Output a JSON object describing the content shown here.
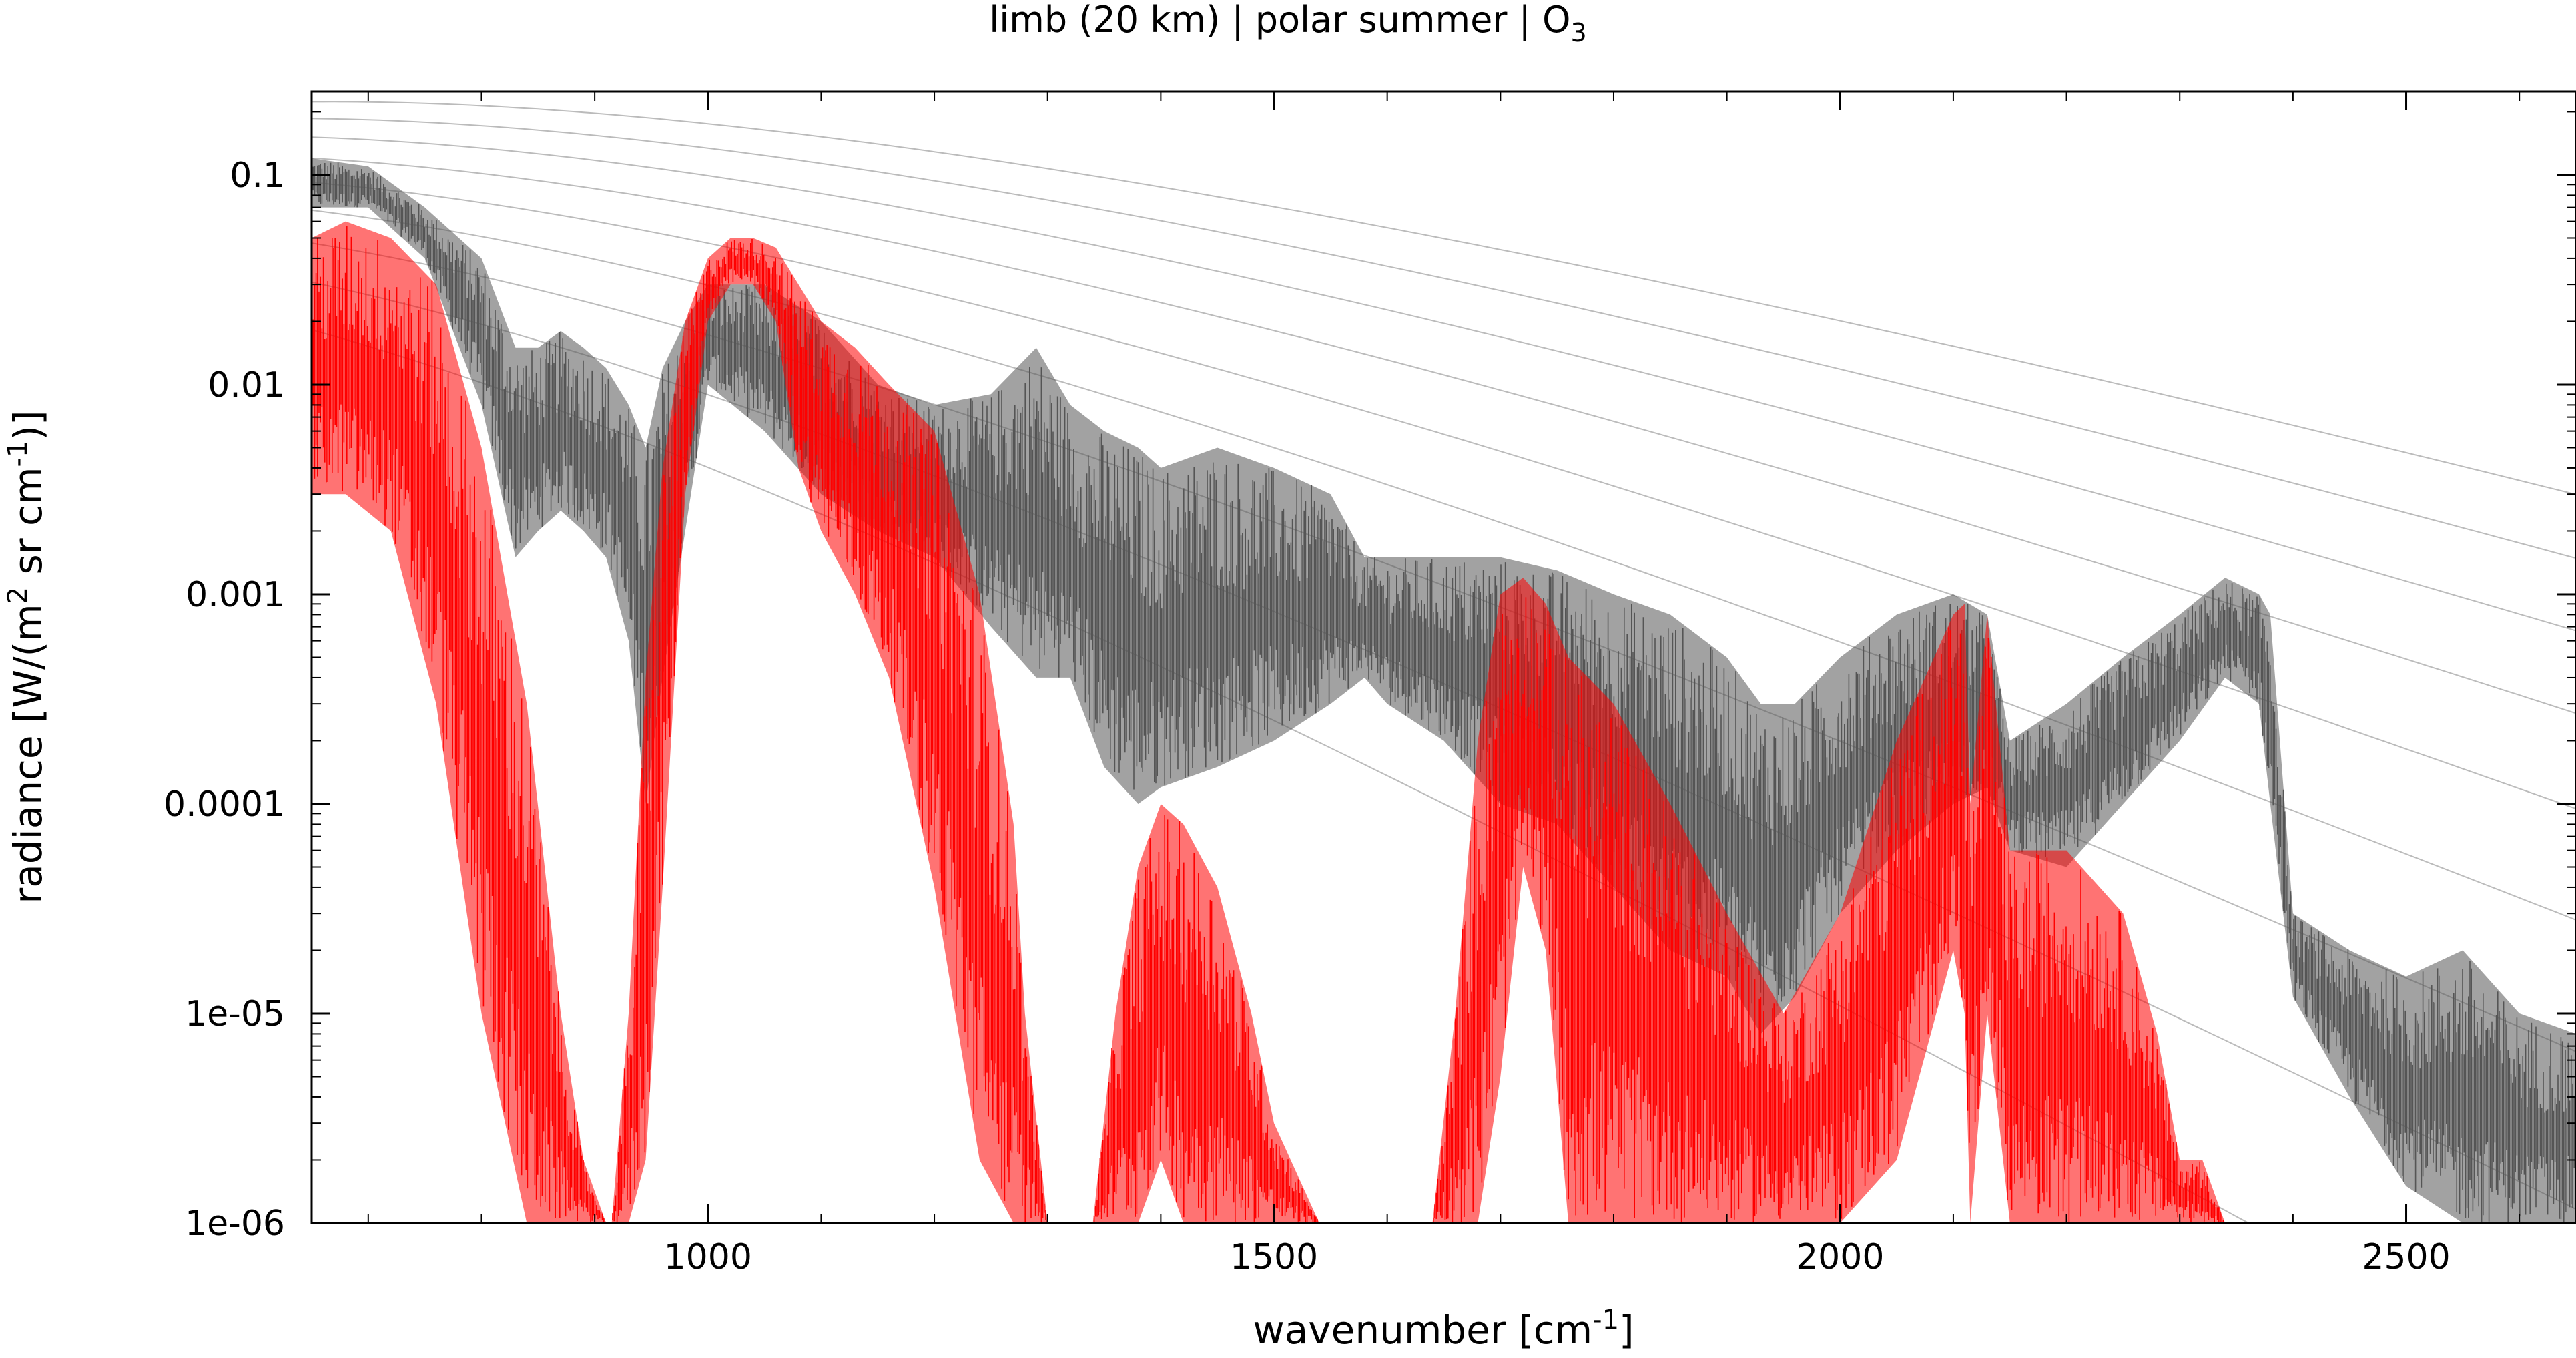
{
  "chart_data": {
    "type": "line",
    "title": {
      "pre": "limb (20 km) | polar summer | O",
      "sub": "3"
    },
    "xlabel": {
      "pre": "wavenumber [cm",
      "sup": "-1",
      "post": "]"
    },
    "ylabel": {
      "pre": "radiance [W/(m",
      "sup1": "2",
      "mid": " sr cm",
      "sup2": "-1",
      "post": ")]"
    },
    "xlim": [
      650,
      2650
    ],
    "ylim": [
      1e-06,
      0.25
    ],
    "yscale": "log",
    "grid": false,
    "legend": "none",
    "x_ticks": [
      {
        "value": 1000,
        "label": "1000"
      },
      {
        "value": 1500,
        "label": "1500"
      },
      {
        "value": 2000,
        "label": "2000"
      },
      {
        "value": 2500,
        "label": "2500"
      }
    ],
    "y_ticks": [
      {
        "value": 0.1,
        "label": "0.1"
      },
      {
        "value": 0.01,
        "label": "0.01"
      },
      {
        "value": 0.001,
        "label": "0.001"
      },
      {
        "value": 0.0001,
        "label": "0.0001"
      },
      {
        "value": 1e-05,
        "label": "1e-05"
      },
      {
        "value": 1e-06,
        "label": "1e-06"
      }
    ],
    "reference_curves": {
      "color": "#bbbbbb",
      "temperatures_K": [
        180,
        200,
        220,
        240,
        260,
        280,
        300,
        320,
        340
      ]
    },
    "series": [
      {
        "color": "#555555",
        "x": [
          650,
          700,
          750,
          800,
          830,
          850,
          870,
          890,
          910,
          930,
          945,
          960,
          980,
          1000,
          1050,
          1100,
          1150,
          1200,
          1250,
          1290,
          1320,
          1350,
          1380,
          1400,
          1450,
          1500,
          1550,
          1580,
          1600,
          1650,
          1700,
          1750,
          1800,
          1850,
          1900,
          1930,
          1960,
          2000,
          2050,
          2100,
          2130,
          2150,
          2200,
          2250,
          2300,
          2340,
          2370,
          2380,
          2400,
          2450,
          2500,
          2550,
          2600,
          2650
        ],
        "upper": [
          0.12,
          0.11,
          0.07,
          0.04,
          0.015,
          0.015,
          0.018,
          0.015,
          0.012,
          0.008,
          0.005,
          0.012,
          0.02,
          0.03,
          0.03,
          0.02,
          0.01,
          0.008,
          0.009,
          0.015,
          0.008,
          0.006,
          0.005,
          0.004,
          0.005,
          0.004,
          0.003,
          0.0015,
          0.0015,
          0.0015,
          0.0015,
          0.0013,
          0.001,
          0.0008,
          0.0005,
          0.0003,
          0.0003,
          0.0005,
          0.0008,
          0.001,
          0.0008,
          0.0002,
          0.0003,
          0.0005,
          0.0008,
          0.0012,
          0.001,
          0.0008,
          3e-05,
          2e-05,
          1.5e-05,
          2e-05,
          1e-05,
          8e-06
        ],
        "lower": [
          0.07,
          0.07,
          0.04,
          0.008,
          0.0015,
          0.002,
          0.0025,
          0.002,
          0.0015,
          0.0006,
          0.0001,
          0.0004,
          0.002,
          0.01,
          0.006,
          0.003,
          0.002,
          0.0015,
          0.0007,
          0.0004,
          0.0004,
          0.00015,
          0.0001,
          0.00012,
          0.00015,
          0.0002,
          0.0003,
          0.0004,
          0.0003,
          0.0002,
          0.0001,
          8e-05,
          4e-05,
          2e-05,
          1.5e-05,
          8e-06,
          1.2e-05,
          3e-05,
          6e-05,
          0.0001,
          0.00012,
          6e-05,
          5e-05,
          0.0001,
          0.0002,
          0.0004,
          0.0003,
          0.0001,
          1.2e-05,
          4e-06,
          1.5e-06,
          1e-06,
          1e-06,
          1e-06
        ]
      },
      {
        "color": "#ff0000",
        "x": [
          650,
          680,
          720,
          760,
          800,
          840,
          870,
          890,
          910,
          915,
          930,
          945,
          960,
          980,
          1000,
          1020,
          1040,
          1060,
          1080,
          1100,
          1130,
          1160,
          1200,
          1240,
          1270,
          1280,
          1300,
          1340,
          1360,
          1380,
          1400,
          1420,
          1450,
          1480,
          1500,
          1540,
          1600,
          1640,
          1660,
          1680,
          1700,
          1720,
          1740,
          1760,
          1800,
          1850,
          1900,
          1950,
          2000,
          2050,
          2100,
          2110,
          2115,
          2130,
          2150,
          2200,
          2250,
          2280,
          2300,
          2320,
          2340,
          2360,
          2400,
          2650
        ],
        "upper": [
          0.05,
          0.06,
          0.05,
          0.03,
          0.005,
          0.0003,
          1e-05,
          2e-06,
          1e-06,
          1e-06,
          1e-05,
          0.0004,
          0.004,
          0.02,
          0.04,
          0.05,
          0.05,
          0.045,
          0.03,
          0.02,
          0.015,
          0.01,
          0.006,
          0.001,
          8e-05,
          1e-05,
          1e-06,
          1e-06,
          1e-05,
          5e-05,
          0.0001,
          8e-05,
          4e-05,
          1e-05,
          3e-06,
          1e-06,
          1e-06,
          1e-06,
          1e-05,
          0.0002,
          0.001,
          0.0012,
          0.0009,
          0.0005,
          0.0003,
          0.0001,
          3e-05,
          1e-05,
          3e-05,
          0.0002,
          0.0008,
          0.0009,
          0.0001,
          0.0008,
          6e-05,
          6e-05,
          3e-05,
          8e-06,
          2e-06,
          2e-06,
          1e-06,
          1e-06,
          1e-06,
          1e-06
        ],
        "lower": [
          0.003,
          0.003,
          0.002,
          0.0003,
          1e-05,
          1e-06,
          1e-06,
          1e-06,
          1e-06,
          1e-06,
          1e-06,
          2e-06,
          4e-05,
          0.003,
          0.02,
          0.03,
          0.03,
          0.02,
          0.004,
          0.002,
          0.001,
          0.0004,
          4e-05,
          2e-06,
          1e-06,
          1e-06,
          1e-06,
          1e-06,
          1e-06,
          1e-06,
          2e-06,
          1e-06,
          1e-06,
          1e-06,
          1e-06,
          1e-06,
          1e-06,
          1e-06,
          1e-06,
          1e-06,
          5e-06,
          5e-05,
          2e-05,
          1e-06,
          1e-06,
          1e-06,
          1e-06,
          1e-06,
          1e-06,
          2e-06,
          2e-05,
          1e-05,
          1e-06,
          1e-05,
          1e-06,
          1e-06,
          1e-06,
          1e-06,
          1e-06,
          1e-06,
          1e-06,
          1e-06,
          1e-06,
          1e-06
        ]
      }
    ]
  }
}
